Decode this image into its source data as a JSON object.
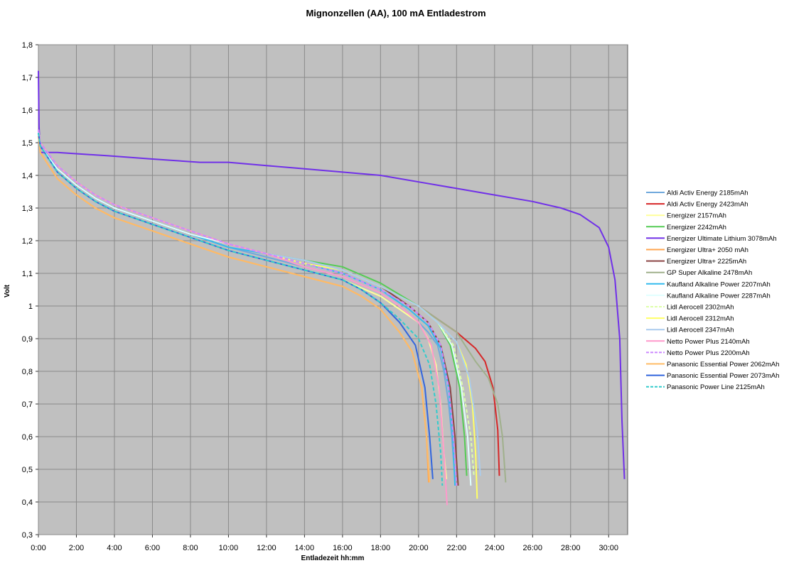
{
  "chart_data": {
    "type": "line",
    "title": "Mignonzellen (AA), 100 mA Entladestrom",
    "xlabel": "Entladezeit hh:mm",
    "ylabel": "Volt",
    "x_unit": "hh:mm",
    "xlim": [
      "0:00",
      "31:00"
    ],
    "ylim": [
      0.3,
      1.8
    ],
    "x_ticks": [
      "0:00",
      "2:00",
      "4:00",
      "6:00",
      "8:00",
      "10:00",
      "12:00",
      "14:00",
      "16:00",
      "18:00",
      "20:00",
      "22:00",
      "24:00",
      "26:00",
      "28:00",
      "30:00"
    ],
    "y_ticks": [
      "0,3",
      "0,4",
      "0,5",
      "0,6",
      "0,7",
      "0,8",
      "0,9",
      "1",
      "1,1",
      "1,2",
      "1,3",
      "1,4",
      "1,5",
      "1,6",
      "1,7",
      "1,8"
    ],
    "grid": true,
    "legend_position": "right",
    "background_color": "#c0c0c0",
    "series": [
      {
        "name": "Aldi Activ Energy 2185mAh",
        "color": "#6fa8dc",
        "dash": false,
        "x": [
          "0:00",
          "0:06",
          "1:00",
          "2:00",
          "3:00",
          "4:00",
          "6:00",
          "8:00",
          "10:00",
          "12:00",
          "14:00",
          "16:00",
          "18:00",
          "19:00",
          "20:00",
          "20:30",
          "21:00",
          "21:20",
          "21:35",
          "21:45",
          "21:55"
        ],
        "y": [
          1.54,
          1.5,
          1.42,
          1.37,
          1.33,
          1.3,
          1.26,
          1.22,
          1.18,
          1.15,
          1.12,
          1.09,
          1.04,
          1.0,
          0.95,
          0.92,
          0.88,
          0.8,
          0.7,
          0.6,
          0.47
        ]
      },
      {
        "name": "Aldi Activ Energy 2423mAh",
        "color": "#d62728",
        "dash": false,
        "x": [
          "0:00",
          "0:06",
          "1:00",
          "2:00",
          "3:00",
          "4:00",
          "6:00",
          "8:00",
          "10:00",
          "12:00",
          "14:00",
          "16:00",
          "18:00",
          "20:00",
          "21:00",
          "22:00",
          "23:00",
          "23:30",
          "23:55",
          "24:10",
          "24:15"
        ],
        "y": [
          1.54,
          1.5,
          1.43,
          1.38,
          1.34,
          1.31,
          1.27,
          1.23,
          1.19,
          1.16,
          1.13,
          1.11,
          1.06,
          1.0,
          0.96,
          0.92,
          0.87,
          0.83,
          0.75,
          0.62,
          0.48
        ]
      },
      {
        "name": "Energizer 2157mAh",
        "color": "#ffff99",
        "dash": false,
        "x": [
          "0:00",
          "0:06",
          "1:00",
          "2:00",
          "3:00",
          "4:00",
          "6:00",
          "8:00",
          "10:00",
          "12:00",
          "14:00",
          "16:00",
          "18:00",
          "19:00",
          "20:00",
          "20:30",
          "20:55",
          "21:10",
          "21:20",
          "21:28"
        ],
        "y": [
          1.53,
          1.49,
          1.41,
          1.36,
          1.32,
          1.29,
          1.25,
          1.21,
          1.17,
          1.14,
          1.11,
          1.08,
          1.03,
          0.99,
          0.95,
          0.9,
          0.82,
          0.7,
          0.55,
          0.47
        ]
      },
      {
        "name": "Energizer 2242mAh",
        "color": "#55cc55",
        "dash": false,
        "x": [
          "0:00",
          "0:06",
          "1:00",
          "2:00",
          "3:00",
          "4:00",
          "6:00",
          "8:00",
          "10:00",
          "12:00",
          "14:00",
          "16:00",
          "18:00",
          "20:00",
          "21:00",
          "21:40",
          "22:10",
          "22:25",
          "22:32"
        ],
        "y": [
          1.54,
          1.5,
          1.43,
          1.38,
          1.34,
          1.31,
          1.27,
          1.23,
          1.19,
          1.16,
          1.14,
          1.12,
          1.07,
          1.0,
          0.95,
          0.88,
          0.75,
          0.6,
          0.48
        ]
      },
      {
        "name": "Energizer Ultimate Lithium 3078mAh",
        "color": "#7030e8",
        "dash": false,
        "x": [
          "0:00",
          "0:02",
          "0:06",
          "0:15",
          "1:00",
          "3:40",
          "6:00",
          "8:30",
          "10:00",
          "12:00",
          "14:00",
          "16:00",
          "18:00",
          "20:00",
          "22:00",
          "24:00",
          "26:00",
          "27:30",
          "28:30",
          "29:30",
          "30:00",
          "30:20",
          "30:35",
          "30:42",
          "30:50"
        ],
        "y": [
          1.72,
          1.55,
          1.47,
          1.47,
          1.47,
          1.46,
          1.45,
          1.44,
          1.44,
          1.43,
          1.42,
          1.41,
          1.4,
          1.38,
          1.36,
          1.34,
          1.32,
          1.3,
          1.28,
          1.24,
          1.18,
          1.08,
          0.9,
          0.65,
          0.47
        ]
      },
      {
        "name": "Energizer Ultra+ 2050 mAh",
        "color": "#ffa54f",
        "dash": false,
        "x": [
          "0:00",
          "0:06",
          "1:00",
          "2:00",
          "3:00",
          "4:00",
          "6:00",
          "8:00",
          "10:00",
          "12:00",
          "14:00",
          "16:00",
          "17:00",
          "18:00",
          "19:00",
          "19:40",
          "20:10",
          "20:25",
          "20:32"
        ],
        "y": [
          1.52,
          1.47,
          1.39,
          1.34,
          1.3,
          1.27,
          1.23,
          1.19,
          1.15,
          1.12,
          1.09,
          1.06,
          1.03,
          0.99,
          0.92,
          0.86,
          0.75,
          0.6,
          0.46
        ]
      },
      {
        "name": "Energizer Ultra+ 2225mAh",
        "color": "#8b4545",
        "dash": false,
        "x": [
          "0:00",
          "0:06",
          "1:00",
          "2:00",
          "3:00",
          "4:00",
          "6:00",
          "8:00",
          "10:00",
          "12:00",
          "14:00",
          "16:00",
          "18:00",
          "19:30",
          "20:30",
          "21:10",
          "21:40",
          "21:55",
          "22:05"
        ],
        "y": [
          1.53,
          1.49,
          1.42,
          1.37,
          1.33,
          1.3,
          1.26,
          1.22,
          1.19,
          1.16,
          1.13,
          1.11,
          1.06,
          1.0,
          0.95,
          0.88,
          0.75,
          0.6,
          0.45
        ]
      },
      {
        "name": "GP Super Alkaline 2478mAh",
        "color": "#a0b08c",
        "dash": false,
        "x": [
          "0:00",
          "0:06",
          "1:00",
          "2:00",
          "3:00",
          "4:00",
          "6:00",
          "8:00",
          "10:00",
          "12:00",
          "14:00",
          "16:00",
          "18:00",
          "20:00",
          "22:00",
          "23:00",
          "23:40",
          "24:10",
          "24:25",
          "24:35"
        ],
        "y": [
          1.54,
          1.5,
          1.43,
          1.38,
          1.34,
          1.31,
          1.27,
          1.23,
          1.19,
          1.16,
          1.13,
          1.11,
          1.06,
          1.0,
          0.92,
          0.83,
          0.78,
          0.7,
          0.6,
          0.46
        ]
      },
      {
        "name": "Kaufland Alkaline Power 2207mAh",
        "color": "#33bbee",
        "dash": false,
        "x": [
          "0:00",
          "0:06",
          "1:00",
          "2:00",
          "3:00",
          "4:00",
          "6:00",
          "8:00",
          "10:00",
          "12:00",
          "14:00",
          "16:00",
          "18:00",
          "19:30",
          "20:30",
          "21:10",
          "21:35",
          "21:48",
          "21:55"
        ],
        "y": [
          1.53,
          1.49,
          1.42,
          1.37,
          1.33,
          1.3,
          1.26,
          1.22,
          1.18,
          1.16,
          1.13,
          1.1,
          1.05,
          0.99,
          0.94,
          0.87,
          0.75,
          0.6,
          0.45
        ]
      },
      {
        "name": "Kaufland Alkaline Power 2287mAh",
        "color": "#e0ffff",
        "dash": false,
        "x": [
          "0:00",
          "0:06",
          "1:00",
          "2:00",
          "3:00",
          "4:00",
          "6:00",
          "8:00",
          "10:00",
          "12:00",
          "14:00",
          "16:00",
          "18:00",
          "20:00",
          "21:00",
          "21:45",
          "22:15",
          "22:35",
          "22:45"
        ],
        "y": [
          1.53,
          1.49,
          1.42,
          1.37,
          1.33,
          1.3,
          1.26,
          1.22,
          1.19,
          1.16,
          1.13,
          1.11,
          1.06,
          1.0,
          0.95,
          0.88,
          0.75,
          0.6,
          0.45
        ]
      },
      {
        "name": "Lidl Aerocell 2302mAh",
        "color": "#ddffaa",
        "dash": true,
        "x": [
          "0:00",
          "0:06",
          "1:00",
          "2:00",
          "3:00",
          "4:00",
          "6:00",
          "8:00",
          "10:00",
          "12:00",
          "14:00",
          "16:00",
          "18:00",
          "20:00",
          "21:00",
          "21:50",
          "22:20",
          "22:45",
          "22:55"
        ],
        "y": [
          1.54,
          1.5,
          1.43,
          1.38,
          1.34,
          1.31,
          1.27,
          1.23,
          1.19,
          1.16,
          1.13,
          1.11,
          1.06,
          1.0,
          0.95,
          0.88,
          0.75,
          0.6,
          0.48
        ]
      },
      {
        "name": "Lidl Aerocell 2312mAh",
        "color": "#ffff66",
        "dash": false,
        "x": [
          "0:00",
          "0:06",
          "1:00",
          "2:00",
          "3:00",
          "4:00",
          "6:00",
          "8:00",
          "10:00",
          "12:00",
          "14:00",
          "16:00",
          "18:00",
          "20:00",
          "21:00",
          "22:00",
          "22:30",
          "22:50",
          "23:00",
          "23:05"
        ],
        "y": [
          1.54,
          1.5,
          1.43,
          1.38,
          1.34,
          1.31,
          1.27,
          1.23,
          1.19,
          1.16,
          1.13,
          1.11,
          1.06,
          1.0,
          0.95,
          0.89,
          0.82,
          0.7,
          0.55,
          0.41
        ]
      },
      {
        "name": "Lidl Aerocell 2347mAh",
        "color": "#aaccee",
        "dash": false,
        "x": [
          "0:00",
          "0:06",
          "1:00",
          "2:00",
          "3:00",
          "4:00",
          "6:00",
          "8:00",
          "10:00",
          "12:00",
          "14:00",
          "16:00",
          "18:00",
          "20:00",
          "21:00",
          "22:00",
          "22:40",
          "23:05",
          "23:15"
        ],
        "y": [
          1.54,
          1.5,
          1.43,
          1.38,
          1.34,
          1.31,
          1.27,
          1.23,
          1.19,
          1.16,
          1.14,
          1.11,
          1.06,
          1.0,
          0.95,
          0.89,
          0.78,
          0.62,
          0.48
        ]
      },
      {
        "name": "Netto Power Plus 2140mAh",
        "color": "#ff99cc",
        "dash": false,
        "x": [
          "0:00",
          "0:06",
          "1:00",
          "2:00",
          "3:00",
          "4:00",
          "6:00",
          "8:00",
          "10:00",
          "12:00",
          "14:00",
          "16:00",
          "18:00",
          "19:00",
          "20:00",
          "20:40",
          "21:05",
          "21:20",
          "21:30"
        ],
        "y": [
          1.54,
          1.5,
          1.43,
          1.38,
          1.34,
          1.31,
          1.27,
          1.23,
          1.19,
          1.16,
          1.12,
          1.09,
          1.04,
          1.0,
          0.95,
          0.88,
          0.75,
          0.55,
          0.39
        ]
      },
      {
        "name": "Netto Power Plus 2200mAh",
        "color": "#cc88ff",
        "dash": true,
        "x": [
          "0:00",
          "0:06",
          "1:00",
          "2:00",
          "3:00",
          "4:00",
          "6:00",
          "8:00",
          "10:00",
          "12:00",
          "14:00",
          "16:00",
          "18:00",
          "19:30",
          "20:30",
          "21:10",
          "21:35",
          "21:50",
          "22:00"
        ],
        "y": [
          1.54,
          1.5,
          1.43,
          1.38,
          1.34,
          1.31,
          1.27,
          1.23,
          1.19,
          1.16,
          1.13,
          1.1,
          1.05,
          1.0,
          0.95,
          0.88,
          0.75,
          0.6,
          0.45
        ]
      },
      {
        "name": "Panasonic Essential Power 2062mAh",
        "color": "#ffbb66",
        "dash": false,
        "x": [
          "0:00",
          "0:06",
          "1:00",
          "2:00",
          "3:00",
          "4:00",
          "6:00",
          "8:00",
          "10:00",
          "12:00",
          "14:00",
          "16:00",
          "17:00",
          "18:00",
          "19:00",
          "19:40",
          "20:10",
          "20:25",
          "20:35"
        ],
        "y": [
          1.52,
          1.47,
          1.39,
          1.34,
          1.3,
          1.27,
          1.23,
          1.19,
          1.15,
          1.12,
          1.09,
          1.06,
          1.03,
          0.99,
          0.92,
          0.86,
          0.75,
          0.6,
          0.46
        ]
      },
      {
        "name": "Panasonic Essential Power 2073mAh",
        "color": "#3366dd",
        "dash": false,
        "x": [
          "0:00",
          "0:06",
          "1:00",
          "2:00",
          "3:00",
          "4:00",
          "6:00",
          "8:00",
          "10:00",
          "12:00",
          "14:00",
          "16:00",
          "17:00",
          "18:00",
          "19:00",
          "19:50",
          "20:20",
          "20:35",
          "20:45"
        ],
        "y": [
          1.53,
          1.49,
          1.41,
          1.36,
          1.32,
          1.29,
          1.25,
          1.21,
          1.17,
          1.14,
          1.11,
          1.08,
          1.05,
          1.01,
          0.95,
          0.88,
          0.75,
          0.6,
          0.47
        ]
      },
      {
        "name": "Panasonic Power Line 2125mAh",
        "color": "#33cccc",
        "dash": true,
        "x": [
          "0:00",
          "0:06",
          "1:00",
          "2:00",
          "3:00",
          "4:00",
          "6:00",
          "8:00",
          "10:00",
          "12:00",
          "14:00",
          "16:00",
          "17:00",
          "18:00",
          "19:00",
          "20:00",
          "20:35",
          "20:55",
          "21:10",
          "21:15"
        ],
        "y": [
          1.53,
          1.49,
          1.41,
          1.36,
          1.32,
          1.29,
          1.25,
          1.21,
          1.17,
          1.14,
          1.11,
          1.08,
          1.05,
          1.01,
          0.96,
          0.9,
          0.82,
          0.7,
          0.55,
          0.45
        ]
      }
    ]
  }
}
